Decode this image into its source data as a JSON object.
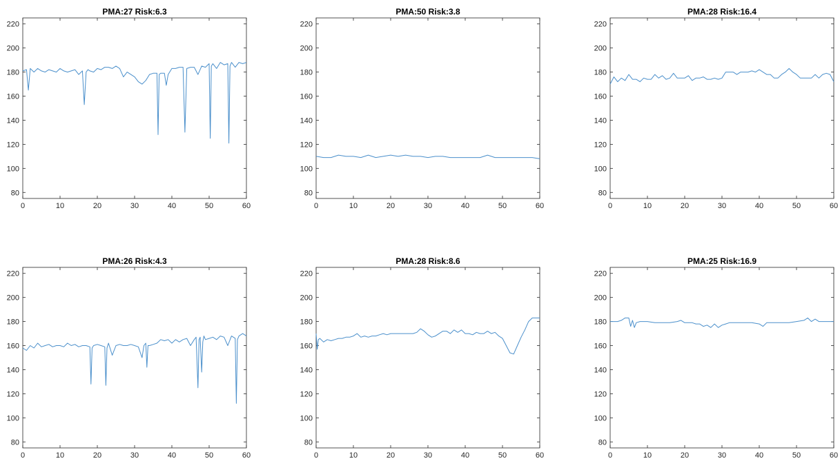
{
  "chart_data": [
    {
      "type": "line",
      "title": "PMA:27 Risk:6.3",
      "xlim": [
        0,
        60
      ],
      "ylim": [
        75,
        225
      ],
      "xticks": [
        0,
        10,
        20,
        30,
        40,
        50,
        60
      ],
      "yticks": [
        80,
        100,
        120,
        140,
        160,
        180,
        200,
        220
      ],
      "series": [
        {
          "color": "#4a8fcb",
          "x": [
            0,
            1,
            1.5,
            2,
            3,
            4,
            5,
            6,
            7,
            8,
            9,
            10,
            11,
            12,
            13,
            14,
            15,
            16,
            16.5,
            17,
            17.5,
            18,
            19,
            20,
            21,
            22,
            23,
            24,
            25,
            26,
            27,
            28,
            29,
            30,
            31,
            32,
            33,
            34,
            35,
            36,
            36.3,
            36.6,
            37,
            38,
            38.5,
            39,
            40,
            41,
            42,
            43,
            43.5,
            44,
            45,
            46,
            47,
            48,
            49,
            50,
            50.3,
            50.6,
            51,
            52,
            53,
            54,
            55,
            55.3,
            55.6,
            56,
            57,
            58,
            59,
            60
          ],
          "y": [
            181,
            182,
            165,
            183,
            180,
            183,
            181,
            180,
            182,
            181,
            180,
            183,
            181,
            180,
            181,
            182,
            178,
            181,
            153,
            180,
            182,
            181,
            180,
            183,
            182,
            184,
            184,
            183,
            185,
            183,
            176,
            180,
            178,
            176,
            172,
            170,
            173,
            178,
            179,
            179,
            128,
            178,
            179,
            179,
            169,
            178,
            183,
            183,
            184,
            184,
            130,
            183,
            184,
            184,
            178,
            185,
            184,
            187,
            125,
            185,
            187,
            183,
            188,
            186,
            187,
            121,
            185,
            188,
            184,
            188,
            187,
            188
          ]
        }
      ]
    },
    {
      "type": "line",
      "title": "PMA:50 Risk:3.8",
      "xlim": [
        0,
        60
      ],
      "ylim": [
        75,
        225
      ],
      "xticks": [
        0,
        10,
        20,
        30,
        40,
        50,
        60
      ],
      "yticks": [
        80,
        100,
        120,
        140,
        160,
        180,
        200,
        220
      ],
      "series": [
        {
          "color": "#4a8fcb",
          "x": [
            0,
            2,
            4,
            6,
            8,
            10,
            12,
            14,
            16,
            18,
            20,
            22,
            24,
            26,
            28,
            30,
            32,
            34,
            36,
            38,
            40,
            42,
            44,
            46,
            48,
            50,
            52,
            54,
            56,
            58,
            60
          ],
          "y": [
            110,
            109,
            109,
            111,
            110,
            110,
            109,
            111,
            109,
            110,
            111,
            110,
            111,
            110,
            110,
            109,
            110,
            110,
            109,
            109,
            109,
            109,
            109,
            111,
            109,
            109,
            109,
            109,
            109,
            109,
            108
          ]
        }
      ]
    },
    {
      "type": "line",
      "title": "PMA:28 Risk:16.4",
      "xlim": [
        0,
        60
      ],
      "ylim": [
        75,
        225
      ],
      "xticks": [
        0,
        10,
        20,
        30,
        40,
        50,
        60
      ],
      "yticks": [
        80,
        100,
        120,
        140,
        160,
        180,
        200,
        220
      ],
      "series": [
        {
          "color": "#4a8fcb",
          "x": [
            0,
            1,
            2,
            3,
            4,
            5,
            6,
            7,
            8,
            9,
            10,
            11,
            12,
            13,
            14,
            15,
            16,
            17,
            18,
            19,
            20,
            21,
            22,
            23,
            24,
            25,
            26,
            27,
            28,
            29,
            30,
            31,
            32,
            33,
            34,
            35,
            36,
            37,
            38,
            39,
            40,
            41,
            42,
            43,
            44,
            45,
            46,
            47,
            48,
            49,
            50,
            51,
            52,
            53,
            54,
            55,
            56,
            57,
            58,
            59,
            60
          ],
          "y": [
            170,
            176,
            172,
            175,
            173,
            178,
            174,
            174,
            172,
            175,
            174,
            174,
            178,
            175,
            177,
            174,
            175,
            179,
            175,
            175,
            175,
            177,
            173,
            175,
            175,
            176,
            174,
            174,
            175,
            174,
            175,
            180,
            180,
            180,
            178,
            180,
            180,
            180,
            181,
            180,
            182,
            180,
            178,
            178,
            175,
            175,
            178,
            180,
            183,
            180,
            178,
            175,
            175,
            175,
            175,
            178,
            175,
            178,
            179,
            178,
            172
          ]
        }
      ]
    },
    {
      "type": "line",
      "title": "PMA:26 Risk:4.3",
      "xlim": [
        0,
        60
      ],
      "ylim": [
        75,
        225
      ],
      "xticks": [
        0,
        10,
        20,
        30,
        40,
        50,
        60
      ],
      "yticks": [
        80,
        100,
        120,
        140,
        160,
        180,
        200,
        220
      ],
      "series": [
        {
          "color": "#4a8fcb",
          "x": [
            0,
            1,
            2,
            3,
            4,
            5,
            6,
            7,
            8,
            9,
            10,
            11,
            12,
            13,
            14,
            15,
            16,
            17,
            18,
            18.3,
            18.6,
            19,
            20,
            21,
            22,
            22.3,
            22.6,
            23,
            24,
            25,
            26,
            27,
            28,
            29,
            30,
            31,
            32,
            32.5,
            33,
            33.3,
            33.6,
            34,
            35,
            36,
            37,
            38,
            39,
            40,
            41,
            42,
            43,
            44,
            45,
            46,
            46.5,
            47,
            47.3,
            47.6,
            48,
            48.3,
            48.6,
            49,
            50,
            51,
            52,
            53,
            54,
            55,
            56,
            57,
            57.3,
            57.6,
            58,
            59,
            60
          ],
          "y": [
            158,
            156,
            160,
            158,
            162,
            159,
            160,
            161,
            159,
            160,
            160,
            159,
            162,
            160,
            161,
            159,
            160,
            160,
            159,
            128,
            158,
            160,
            161,
            160,
            159,
            127,
            158,
            162,
            152,
            160,
            161,
            160,
            160,
            161,
            160,
            159,
            150,
            160,
            162,
            142,
            160,
            160,
            161,
            162,
            165,
            164,
            165,
            162,
            165,
            163,
            165,
            166,
            160,
            165,
            167,
            125,
            165,
            167,
            138,
            163,
            168,
            165,
            166,
            167,
            165,
            168,
            167,
            160,
            168,
            166,
            112,
            165,
            168,
            170,
            168
          ]
        }
      ]
    },
    {
      "type": "line",
      "title": "PMA:28 Risk:8.6",
      "xlim": [
        0,
        60
      ],
      "ylim": [
        75,
        225
      ],
      "xticks": [
        0,
        10,
        20,
        30,
        40,
        50,
        60
      ],
      "yticks": [
        80,
        100,
        120,
        140,
        160,
        180,
        200,
        220
      ],
      "series": [
        {
          "color": "#4a8fcb",
          "x": [
            0,
            0.3,
            0.6,
            1,
            2,
            3,
            4,
            5,
            6,
            7,
            8,
            9,
            10,
            11,
            12,
            13,
            14,
            15,
            16,
            17,
            18,
            19,
            20,
            21,
            22,
            23,
            24,
            25,
            26,
            27,
            28,
            29,
            30,
            31,
            32,
            33,
            34,
            35,
            36,
            37,
            38,
            39,
            40,
            41,
            42,
            43,
            44,
            45,
            46,
            47,
            48,
            49,
            50,
            51,
            52,
            53,
            54,
            55,
            56,
            57,
            58,
            59,
            60
          ],
          "y": [
            170,
            157,
            165,
            166,
            163,
            165,
            164,
            165,
            166,
            166,
            167,
            167,
            168,
            170,
            167,
            168,
            167,
            168,
            168,
            169,
            170,
            169,
            170,
            170,
            170,
            170,
            170,
            170,
            170,
            171,
            174,
            172,
            169,
            167,
            168,
            170,
            172,
            172,
            170,
            173,
            171,
            173,
            170,
            170,
            169,
            171,
            170,
            170,
            172,
            170,
            171,
            168,
            166,
            160,
            154,
            153,
            160,
            167,
            173,
            180,
            183,
            183,
            183
          ]
        }
      ]
    },
    {
      "type": "line",
      "title": "PMA:25 Risk:16.9",
      "xlim": [
        0,
        60
      ],
      "ylim": [
        75,
        225
      ],
      "xticks": [
        0,
        10,
        20,
        30,
        40,
        50,
        60
      ],
      "yticks": [
        80,
        100,
        120,
        140,
        160,
        180,
        200,
        220
      ],
      "series": [
        {
          "color": "#4a8fcb",
          "x": [
            0,
            1,
            2,
            3,
            4,
            5,
            5.5,
            6,
            6.5,
            7,
            8,
            9,
            10,
            12,
            14,
            16,
            18,
            19,
            20,
            22,
            23,
            24,
            25,
            26,
            27,
            28,
            29,
            30,
            31,
            32,
            34,
            36,
            38,
            40,
            41,
            42,
            44,
            46,
            48,
            50,
            52,
            53,
            54,
            55,
            56,
            58,
            60
          ],
          "y": [
            180,
            180,
            180,
            181,
            183,
            183,
            176,
            181,
            175,
            179,
            180,
            180,
            180,
            179,
            179,
            179,
            180,
            181,
            179,
            179,
            178,
            178,
            176,
            177,
            175,
            178,
            175,
            177,
            178,
            179,
            179,
            179,
            179,
            178,
            176,
            179,
            179,
            179,
            179,
            180,
            181,
            183,
            180,
            182,
            180,
            180,
            180
          ]
        }
      ]
    }
  ]
}
